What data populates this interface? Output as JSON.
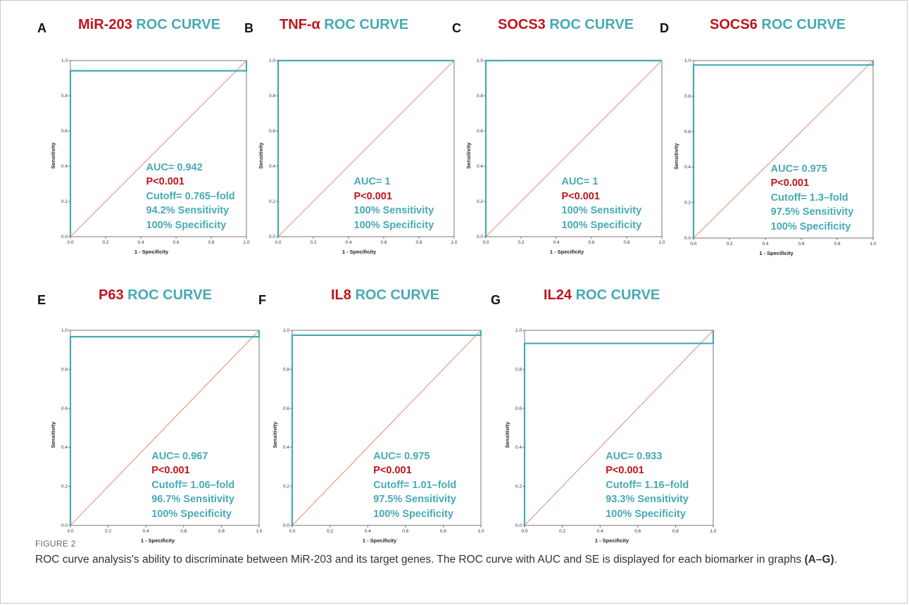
{
  "figure": {
    "label": "FIGURE 2",
    "caption_main": "ROC curve analysis's ability to discriminate between MiR-203 and its target genes. The ROC curve with AUC and SE is displayed for each biomarker in graphs ",
    "caption_ref": "(A–G)",
    "caption_end": "."
  },
  "colors": {
    "roc_line": "#46aab4",
    "reference_line": "#e8998a",
    "gene_title": "#c0141c",
    "roc_title": "#46aab4",
    "p_value": "#c0141c"
  },
  "panels": [
    {
      "letter": "A",
      "gene": "MiR-203",
      "suffix": "ROC CURVE",
      "lines": [
        "AUC= 0.942",
        "P<0.001",
        "Cutoff= 0.765–fold",
        "94.2% Sensitivity",
        "100% Specificity"
      ]
    },
    {
      "letter": "B",
      "gene": "TNF-α",
      "suffix": "ROC CURVE",
      "lines": [
        "AUC= 1",
        "P<0.001",
        "100% Sensitivity",
        "100% Specificity"
      ]
    },
    {
      "letter": "C",
      "gene": "SOCS3",
      "suffix": "ROC CURVE",
      "lines": [
        "AUC= 1",
        "P<0.001",
        "100% Sensitivity",
        "100% Specificity"
      ]
    },
    {
      "letter": "D",
      "gene": "SOCS6",
      "suffix": "ROC CURVE",
      "lines": [
        "AUC= 0.975",
        "P<0.001",
        "Cutoff= 1.3–fold",
        "97.5% Sensitivity",
        "100% Specificity"
      ]
    },
    {
      "letter": "E",
      "gene": "P63",
      "suffix": "ROC CURVE",
      "lines": [
        "AUC= 0.967",
        "P<0.001",
        "Cutoff= 1.06–fold",
        "96.7% Sensitivity",
        "100% Specificity"
      ]
    },
    {
      "letter": "F",
      "gene": "IL8",
      "suffix": "ROC CURVE",
      "lines": [
        "AUC= 0.975",
        "P<0.001",
        "Cutoff= 1.01–fold",
        "97.5% Sensitivity",
        "100% Specificity"
      ]
    },
    {
      "letter": "G",
      "gene": "IL24",
      "suffix": "ROC CURVE",
      "lines": [
        "AUC= 0.933",
        "P<0.001",
        "Cutoff= 1.16–fold",
        "93.3% Sensitivity",
        "100% Specificity"
      ]
    }
  ],
  "chart_data": [
    {
      "type": "line",
      "title": "MiR-203 ROC CURVE",
      "xlabel": "1 - Specificity",
      "ylabel": "Sensitivity",
      "xlim": [
        0,
        1
      ],
      "ylim": [
        0,
        1
      ],
      "x_ticks": [
        "0.0",
        "0.2",
        "0.4",
        "0.6",
        "0.8",
        "1.0"
      ],
      "y_ticks": [
        "0.0",
        "0.2",
        "0.4",
        "0.6",
        "0.8",
        "1.0"
      ],
      "series": [
        {
          "x": [
            0,
            0,
            1,
            1
          ],
          "y": [
            0,
            0.942,
            0.942,
            1
          ]
        },
        {
          "x": [
            0,
            1
          ],
          "y": [
            0,
            1
          ]
        }
      ]
    },
    {
      "type": "line",
      "title": "TNF-α ROC CURVE",
      "xlabel": "1 - Specificity",
      "ylabel": "Sensitivity",
      "xlim": [
        0,
        1
      ],
      "ylim": [
        0,
        1
      ],
      "x_ticks": [
        "0.0",
        "0.2",
        "0.4",
        "0.6",
        "0.8",
        "1.0"
      ],
      "y_ticks": [
        "0.0",
        "0.2",
        "0.4",
        "0.6",
        "0.8",
        "1.0"
      ],
      "series": [
        {
          "x": [
            0,
            0,
            1
          ],
          "y": [
            0,
            1,
            1
          ]
        },
        {
          "x": [
            0,
            1
          ],
          "y": [
            0,
            1
          ]
        }
      ]
    },
    {
      "type": "line",
      "title": "SOCS3 ROC CURVE",
      "xlabel": "1 - Specificity",
      "ylabel": "Sensitivity",
      "xlim": [
        0,
        1
      ],
      "ylim": [
        0,
        1
      ],
      "x_ticks": [
        "0.0",
        "0.2",
        "0.4",
        "0.6",
        "0.8",
        "1.0"
      ],
      "y_ticks": [
        "0.0",
        "0.2",
        "0.4",
        "0.6",
        "0.8",
        "1.0"
      ],
      "series": [
        {
          "x": [
            0,
            0,
            1
          ],
          "y": [
            0,
            1,
            1
          ]
        },
        {
          "x": [
            0,
            1
          ],
          "y": [
            0,
            1
          ]
        }
      ]
    },
    {
      "type": "line",
      "title": "SOCS6 ROC CURVE",
      "xlabel": "1 - Specificity",
      "ylabel": "Sensitivity",
      "xlim": [
        0,
        1
      ],
      "ylim": [
        0,
        1
      ],
      "x_ticks": [
        "0.0",
        "0.2",
        "0.4",
        "0.6",
        "0.8",
        "1.0"
      ],
      "y_ticks": [
        "0.0",
        "0.2",
        "0.4",
        "0.6",
        "0.8",
        "1.0"
      ],
      "series": [
        {
          "x": [
            0,
            0,
            1,
            1
          ],
          "y": [
            0,
            0.975,
            0.975,
            1
          ]
        },
        {
          "x": [
            0,
            1
          ],
          "y": [
            0,
            1
          ]
        }
      ]
    },
    {
      "type": "line",
      "title": "P63 ROC CURVE",
      "xlabel": "1 - Specificity",
      "ylabel": "Sensitivity",
      "xlim": [
        0,
        1
      ],
      "ylim": [
        0,
        1
      ],
      "x_ticks": [
        "0.0",
        "0.2",
        "0.4",
        "0.6",
        "0.8",
        "1.0"
      ],
      "y_ticks": [
        "0.0",
        "0.2",
        "0.4",
        "0.6",
        "0.8",
        "1.0"
      ],
      "series": [
        {
          "x": [
            0,
            0,
            1,
            1
          ],
          "y": [
            0,
            0.967,
            0.967,
            1
          ]
        },
        {
          "x": [
            0,
            1
          ],
          "y": [
            0,
            1
          ]
        }
      ]
    },
    {
      "type": "line",
      "title": "IL8 ROC CURVE",
      "xlabel": "1 - Specificity",
      "ylabel": "Sensitivity",
      "xlim": [
        0,
        1
      ],
      "ylim": [
        0,
        1
      ],
      "x_ticks": [
        "0.0",
        "0.2",
        "0.4",
        "0.6",
        "0.8",
        "1.0"
      ],
      "y_ticks": [
        "0.0",
        "0.2",
        "0.4",
        "0.6",
        "0.8",
        "1.0"
      ],
      "series": [
        {
          "x": [
            0,
            0,
            1,
            1
          ],
          "y": [
            0,
            0.975,
            0.975,
            1
          ]
        },
        {
          "x": [
            0,
            1
          ],
          "y": [
            0,
            1
          ]
        }
      ]
    },
    {
      "type": "line",
      "title": "IL24 ROC CURVE",
      "xlabel": "1 - Specificity",
      "ylabel": "Sensitivity",
      "xlim": [
        0,
        1
      ],
      "ylim": [
        0,
        1
      ],
      "x_ticks": [
        "0.0",
        "0.2",
        "0.4",
        "0.6",
        "0.8",
        "1.0"
      ],
      "y_ticks": [
        "0.0",
        "0.2",
        "0.4",
        "0.6",
        "0.8",
        "1.0"
      ],
      "series": [
        {
          "x": [
            0,
            0,
            1,
            1
          ],
          "y": [
            0,
            0.933,
            0.933,
            1
          ]
        },
        {
          "x": [
            0,
            1
          ],
          "y": [
            0,
            1
          ]
        }
      ]
    }
  ]
}
